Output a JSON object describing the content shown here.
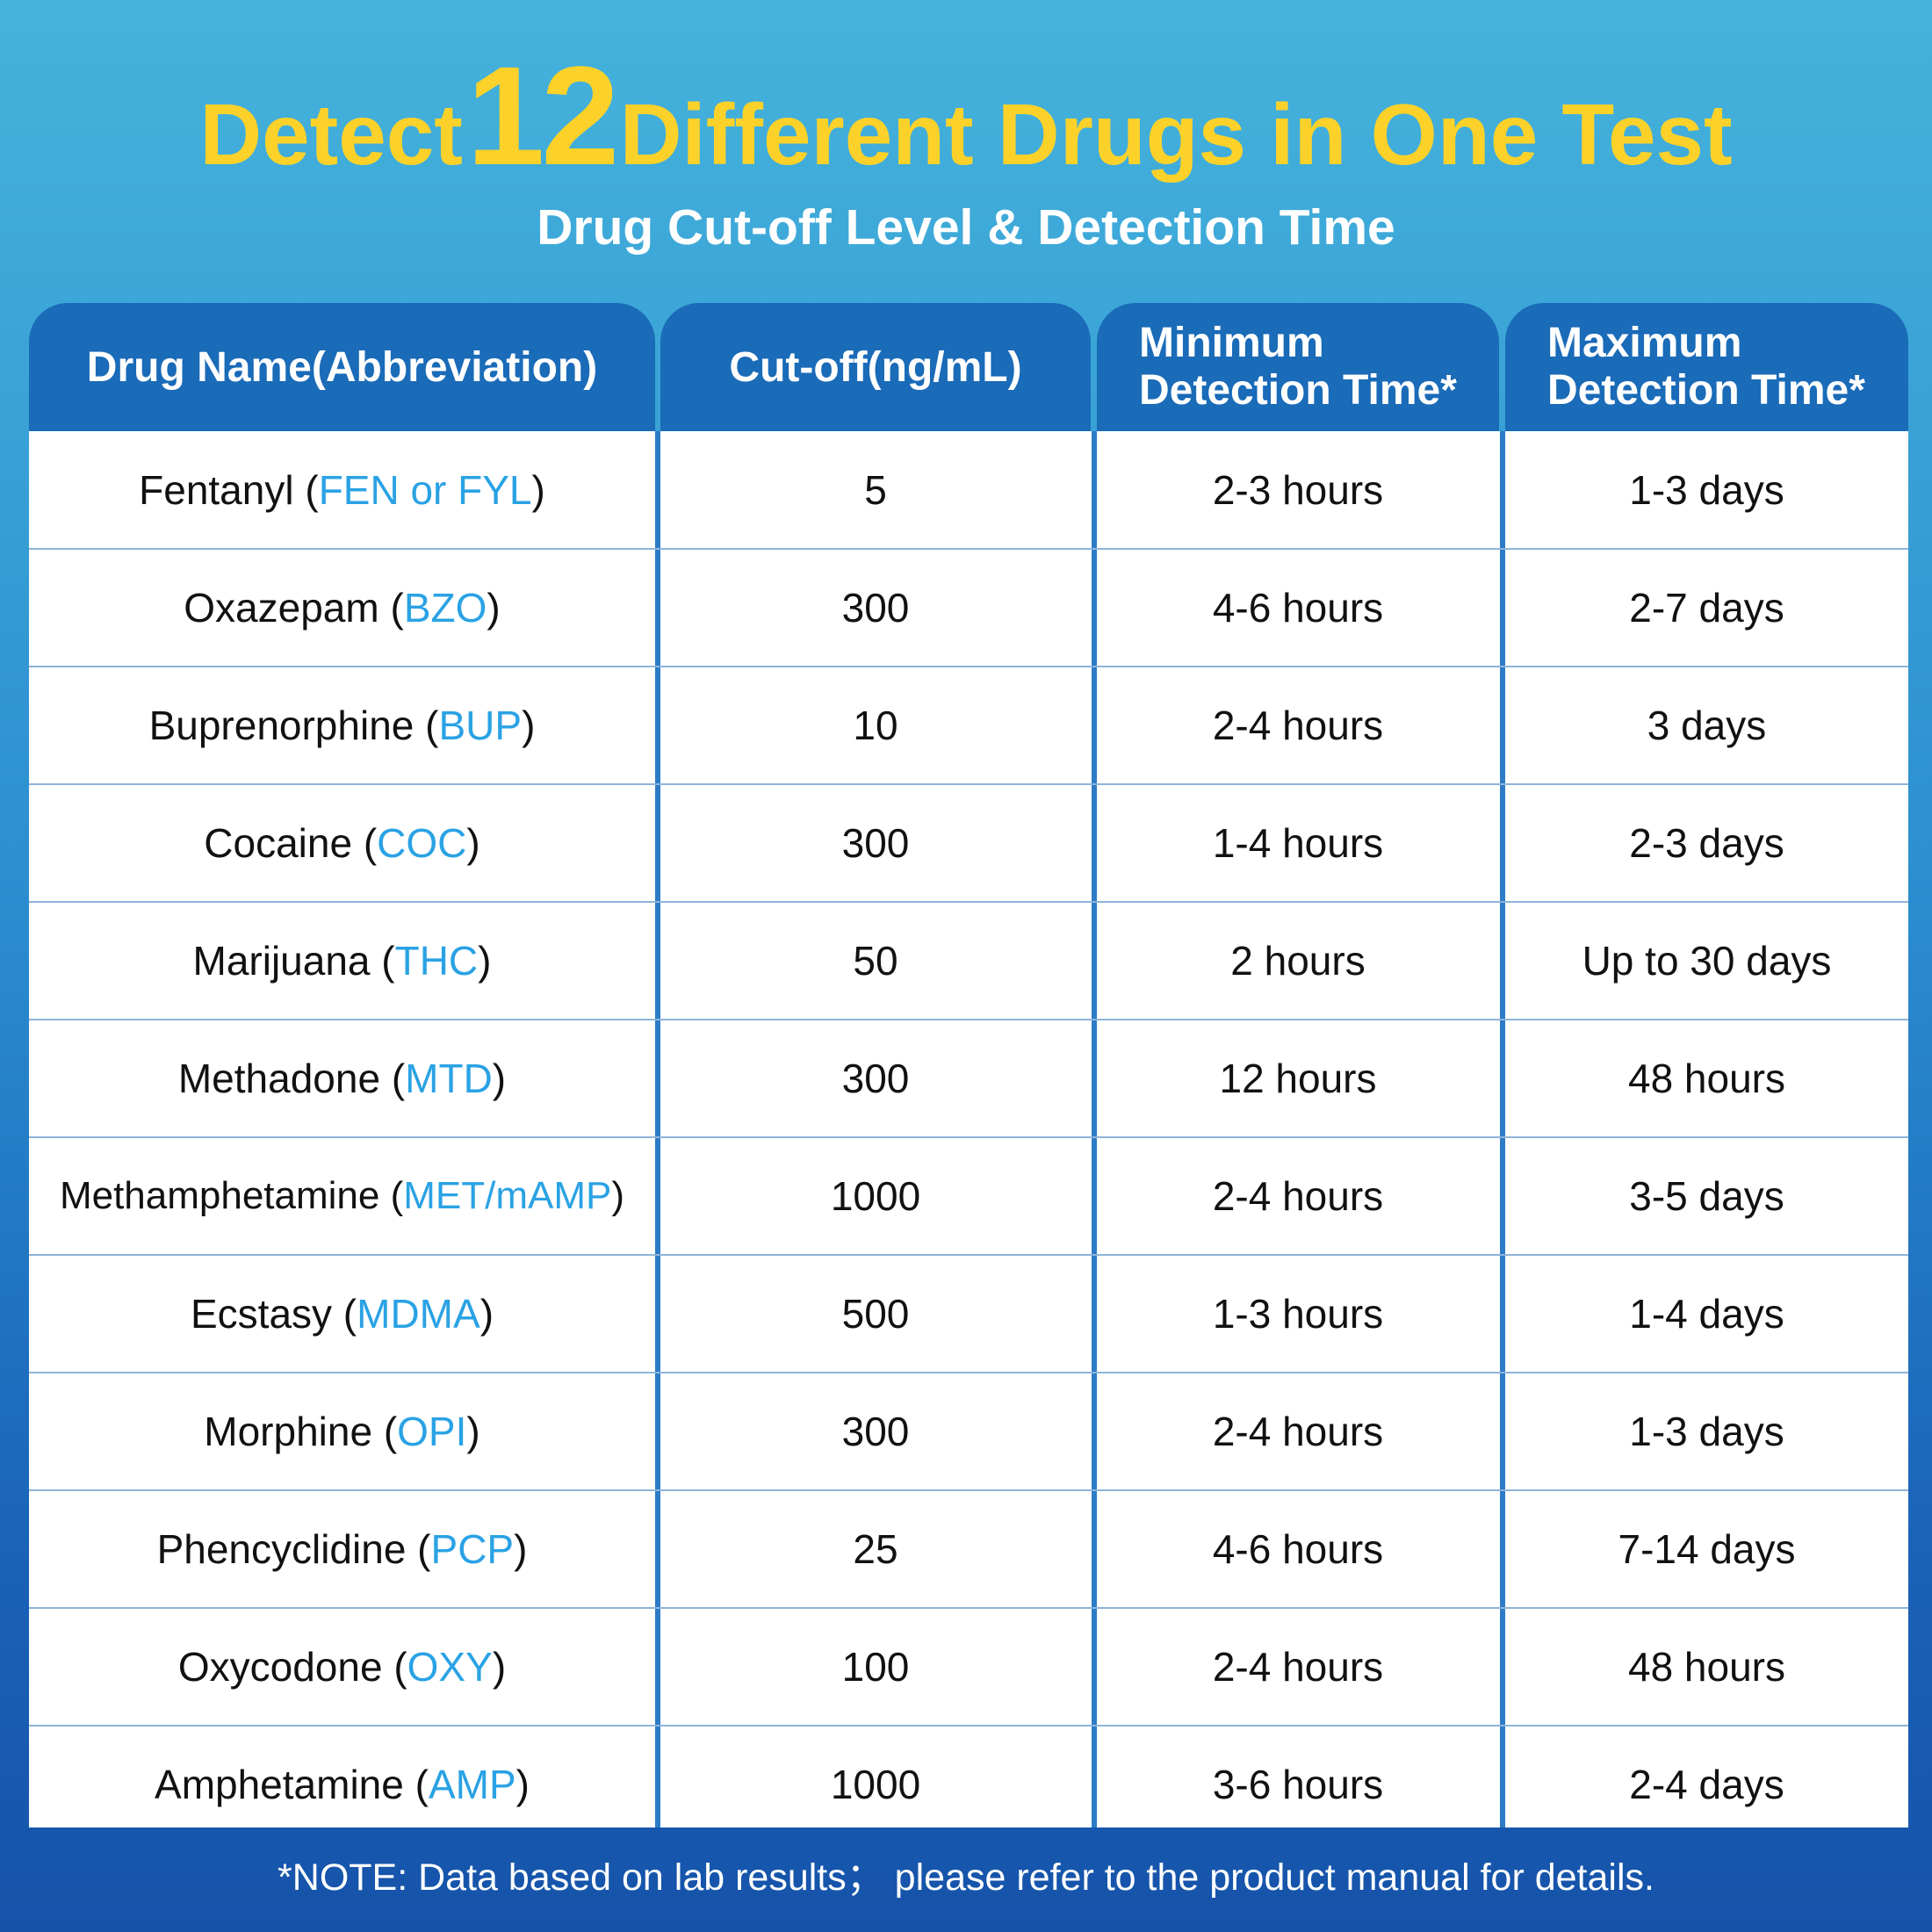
{
  "title": {
    "before": "Detect",
    "number": "12",
    "after": "Different Drugs in One Test"
  },
  "subtitle": "Drug Cut-off Level & Detection Time",
  "table": {
    "headers": {
      "drug": "Drug Name(Abbreviation)",
      "cutoff": "Cut-off(ng/mL)",
      "min_line1": "Minimum",
      "min_line2": "Detection Time*",
      "max_line1": "Maximum",
      "max_line2": "Detection Time*"
    },
    "rows": [
      {
        "name": "Fentanyl",
        "abbr": "FEN or FYL",
        "cutoff": "5",
        "min": "2-3 hours",
        "max": "1-3 days"
      },
      {
        "name": "Oxazepam",
        "abbr": "BZO",
        "cutoff": "300",
        "min": "4-6 hours",
        "max": "2-7 days"
      },
      {
        "name": "Buprenorphine",
        "abbr": "BUP",
        "cutoff": "10",
        "min": "2-4 hours",
        "max": "3 days"
      },
      {
        "name": "Cocaine",
        "abbr": "COC",
        "cutoff": "300",
        "min": "1-4 hours",
        "max": "2-3 days"
      },
      {
        "name": "Marijuana",
        "abbr": "THC",
        "cutoff": "50",
        "min": "2 hours",
        "max": "Up to 30 days"
      },
      {
        "name": "Methadone",
        "abbr": "MTD",
        "cutoff": "300",
        "min": "12 hours",
        "max": "48 hours"
      },
      {
        "name": "Methamphetamine",
        "abbr": "MET/mAMP",
        "cutoff": "1000",
        "min": "2-4 hours",
        "max": "3-5 days"
      },
      {
        "name": "Ecstasy",
        "abbr": "MDMA",
        "cutoff": "500",
        "min": "1-3 hours",
        "max": "1-4 days"
      },
      {
        "name": "Morphine",
        "abbr": "OPI",
        "cutoff": "300",
        "min": "2-4 hours",
        "max": "1-3 days"
      },
      {
        "name": "Phencyclidine",
        "abbr": "PCP",
        "cutoff": "25",
        "min": "4-6 hours",
        "max": "7-14 days"
      },
      {
        "name": "Oxycodone",
        "abbr": "OXY",
        "cutoff": "100",
        "min": "2-4 hours",
        "max": "48 hours"
      },
      {
        "name": "Amphetamine",
        "abbr": "AMP",
        "cutoff": "1000",
        "min": "3-6 hours",
        "max": "2-4 days"
      }
    ]
  },
  "footnote": "*NOTE: Data based on lab results；  please refer to the product manual for details.",
  "colors": {
    "title": "#fcd22a",
    "header_bg": "#1a6bb8",
    "abbreviation": "#2aa2e4",
    "body_text": "#111111"
  }
}
